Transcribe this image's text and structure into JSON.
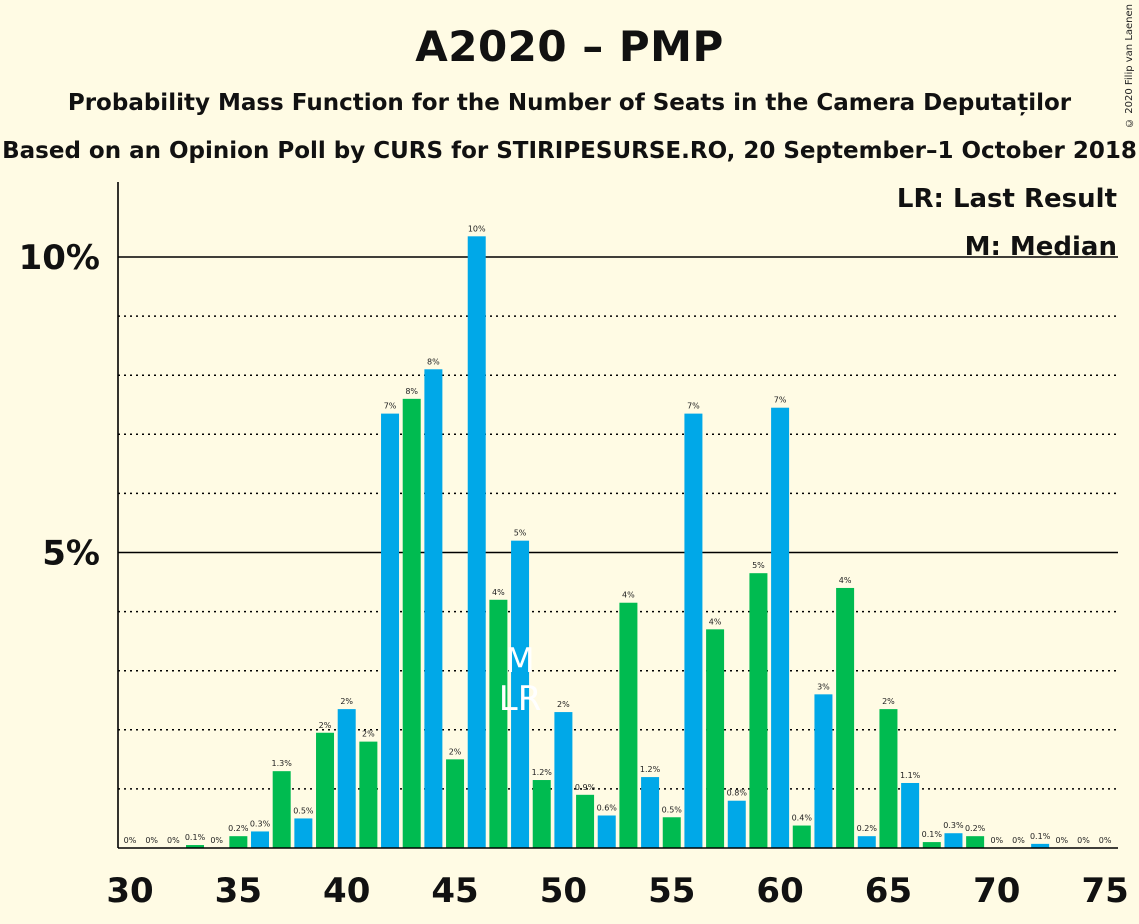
{
  "title": "A2020 – PMP",
  "subtitle1": "Probability Mass Function for the Number of Seats in the Camera Deputaților",
  "subtitle2": "Based on an Opinion Poll by CURS for STIRIPESURSE.RO, 20 September–1 October 2018",
  "copyright": "© 2020 Filip van Laenen",
  "legend": {
    "last_result": "LR: Last Result",
    "median": "M: Median"
  },
  "colors": {
    "blue": "#00a8e8",
    "green": "#00bb50",
    "background": "#fffbe4"
  },
  "chart_data": {
    "type": "bar",
    "x": [
      30,
      31,
      32,
      33,
      34,
      35,
      36,
      37,
      38,
      39,
      40,
      41,
      42,
      43,
      44,
      45,
      46,
      47,
      48,
      49,
      50,
      51,
      52,
      53,
      54,
      55,
      56,
      57,
      58,
      59,
      60,
      61,
      62,
      63,
      64,
      65,
      66,
      67,
      68,
      69,
      70,
      71,
      72,
      73,
      74,
      75
    ],
    "values": [
      0,
      0,
      0,
      0.05,
      0,
      0.2,
      0.28,
      1.3,
      0.5,
      1.95,
      2.35,
      1.8,
      7.35,
      7.6,
      8.1,
      1.5,
      10.35,
      4.2,
      5.2,
      1.15,
      2.3,
      0.9,
      0.55,
      4.15,
      1.2,
      0.52,
      7.35,
      3.7,
      0.8,
      4.65,
      7.45,
      0.38,
      2.6,
      4.4,
      0.2,
      2.35,
      1.1,
      0.1,
      0.25,
      0.2,
      0,
      0,
      0.07,
      0,
      0,
      0
    ],
    "labels": [
      "0%",
      "0%",
      "0%",
      "0.1%",
      "0%",
      "0.2%",
      "0.3%",
      "1.3%",
      "0.5%",
      "2%",
      "2%",
      "2%",
      "7%",
      "8%",
      "8%",
      "2%",
      "10%",
      "4%",
      "5%",
      "1.2%",
      "2%",
      "0.9%",
      "0.6%",
      "4%",
      "1.2%",
      "0.5%",
      "7%",
      "4%",
      "0.8%",
      "5%",
      "7%",
      "0.4%",
      "3%",
      "4%",
      "0.2%",
      "2%",
      "1.1%",
      "0.1%",
      "0.3%",
      "0.2%",
      "0%",
      "0%",
      "0.1%",
      "0%",
      "0%",
      "0%"
    ],
    "xticks": [
      "30",
      "35",
      "40",
      "45",
      "50",
      "55",
      "60",
      "65",
      "70",
      "75"
    ],
    "yticks": [
      "5%",
      "10%"
    ],
    "ylim": [
      0,
      11.25
    ],
    "median_seat": 48,
    "median_marker": "M",
    "last_result_seat": 48,
    "last_result_marker": "LR"
  }
}
